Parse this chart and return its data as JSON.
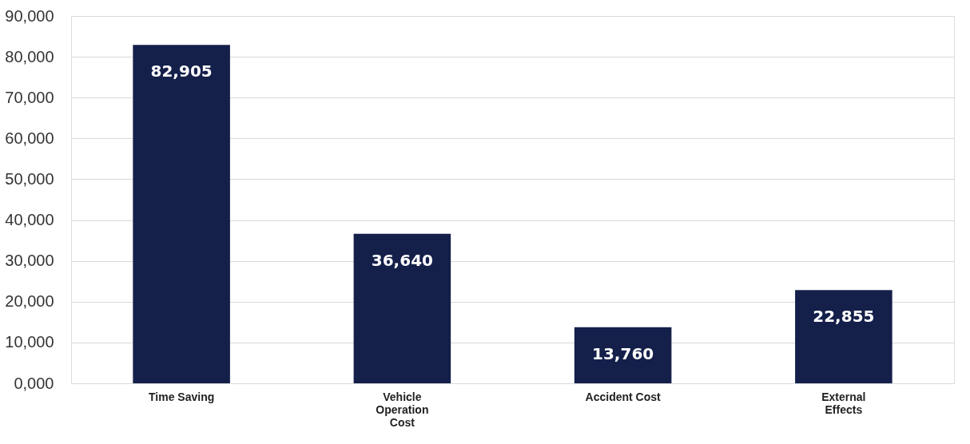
{
  "chart_data": {
    "type": "bar",
    "categories": [
      "Time Saving",
      "Vehicle Operation Cost",
      "Accident Cost",
      "External Effects"
    ],
    "values": [
      82905,
      36640,
      13760,
      22855
    ],
    "value_labels": [
      "82,905",
      "36,640",
      "13,760",
      "22,855"
    ],
    "color": "#14204a",
    "ylim": [
      0,
      90000
    ],
    "yticks": [
      {
        "value": 0,
        "label": "0,000"
      },
      {
        "value": 10000,
        "label": "10,000"
      },
      {
        "value": 20000,
        "label": "20,000"
      },
      {
        "value": 30000,
        "label": "30,000"
      },
      {
        "value": 40000,
        "label": "40,000"
      },
      {
        "value": 50000,
        "label": "50,000"
      },
      {
        "value": 60000,
        "label": "60,000"
      },
      {
        "value": 70000,
        "label": "70,000"
      },
      {
        "value": 80000,
        "label": "80,000"
      },
      {
        "value": 90000,
        "label": "90,000"
      }
    ],
    "grid": "y"
  }
}
